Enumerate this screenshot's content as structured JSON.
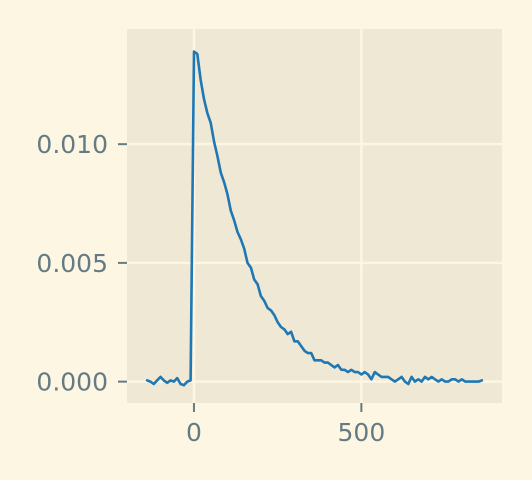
{
  "chart_data": {
    "type": "line",
    "title": "",
    "xlabel": "",
    "ylabel": "",
    "xlim": [
      -200,
      920
    ],
    "ylim": [
      -0.0009,
      0.01485
    ],
    "xticks": [
      0,
      500
    ],
    "xtick_labels": [
      "0",
      "500"
    ],
    "yticks": [
      0.0,
      0.005,
      0.01
    ],
    "ytick_labels": [
      "0.000",
      "0.005",
      "0.010"
    ],
    "grid": true,
    "legend": "none",
    "colors": {
      "line": "#1f77b4",
      "plot_bg": "#eee8d5",
      "page_bg": "#fdf6e3",
      "grid": "#fdf6e3",
      "text": "#657b83"
    },
    "series": [
      {
        "x": [
          -140,
          -130,
          -120,
          -110,
          -100,
          -90,
          -80,
          -70,
          -60,
          -50,
          -40,
          -30,
          -20,
          -10,
          0,
          10,
          20,
          30,
          40,
          50,
          60,
          70,
          80,
          90,
          100,
          110,
          120,
          130,
          140,
          150,
          160,
          170,
          180,
          190,
          200,
          210,
          220,
          230,
          240,
          250,
          260,
          270,
          280,
          290,
          300,
          310,
          320,
          330,
          340,
          350,
          360,
          370,
          380,
          390,
          400,
          410,
          420,
          430,
          440,
          450,
          460,
          470,
          480,
          490,
          500,
          510,
          520,
          530,
          540,
          550,
          560,
          570,
          580,
          590,
          600,
          610,
          620,
          630,
          640,
          650,
          660,
          670,
          680,
          690,
          700,
          710,
          720,
          730,
          740,
          750,
          760,
          770,
          780,
          790,
          800,
          810,
          820,
          830,
          840,
          850,
          860
        ],
        "y": [
          5e-05,
          0.0,
          -0.0001,
          5e-05,
          0.0002,
          5e-05,
          -5e-05,
          5e-05,
          0.0,
          0.00015,
          -0.0001,
          -0.00015,
          0.0,
          5e-05,
          0.0139,
          0.0138,
          0.0127,
          0.0119,
          0.0113,
          0.0109,
          0.0101,
          0.0095,
          0.0088,
          0.0084,
          0.0079,
          0.0072,
          0.0068,
          0.0063,
          0.006,
          0.0056,
          0.005,
          0.0048,
          0.0043,
          0.0041,
          0.0036,
          0.0034,
          0.0031,
          0.003,
          0.0028,
          0.0025,
          0.0023,
          0.0022,
          0.002,
          0.0021,
          0.0017,
          0.0017,
          0.0015,
          0.0013,
          0.0012,
          0.0012,
          0.0009,
          0.0009,
          0.0009,
          0.0008,
          0.0008,
          0.0007,
          0.0006,
          0.0007,
          0.0005,
          0.0005,
          0.0004,
          0.0005,
          0.0004,
          0.0004,
          0.0003,
          0.0004,
          0.0003,
          0.0001,
          0.0004,
          0.0003,
          0.0002,
          0.0002,
          0.0002,
          0.0001,
          0.0,
          0.0001,
          0.0002,
          0.0,
          -0.0001,
          0.0002,
          0.0,
          0.0001,
          0.0,
          0.0002,
          0.0001,
          0.0002,
          0.0001,
          0.0,
          0.0001,
          0.0,
          0.0,
          0.0001,
          0.0001,
          0.0,
          0.0001,
          0.0,
          0.0,
          0.0,
          0.0,
          0.0,
          5e-05
        ]
      }
    ]
  }
}
